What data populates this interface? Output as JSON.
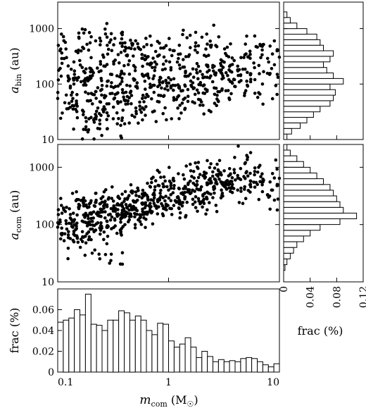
{
  "chart_data": [
    {
      "id": "scatter-abin",
      "type": "scatter",
      "xscale": "log",
      "yscale": "log",
      "xlim": [
        0.1,
        10
      ],
      "ylim": [
        10,
        3000
      ],
      "ylabel": "a",
      "ylabel_sub": "bin",
      "ylabel_unit": " (au)",
      "yticks": [
        10,
        100,
        1000
      ],
      "ytick_labels": [
        "10",
        "100",
        "1000"
      ],
      "points": {
        "x": [
          0.1,
          0.12,
          0.15,
          0.18,
          0.2,
          0.22,
          0.25,
          0.3,
          0.35,
          0.4,
          0.45,
          0.5,
          0.6,
          0.7,
          0.8,
          1.0,
          1.2,
          1.5,
          2.0,
          2.5,
          3.0,
          4.0,
          5.0,
          6.0,
          7.0,
          8.0,
          9.0,
          0.11,
          0.13,
          0.16,
          0.19,
          0.24,
          0.28,
          0.33,
          0.42,
          0.55,
          0.65,
          0.9,
          1.1,
          1.3,
          1.8,
          2.2,
          2.8,
          3.5,
          4.5,
          0.14,
          0.17,
          0.21,
          0.27,
          0.38,
          0.48,
          0.58,
          0.75,
          0.95,
          1.4,
          1.7,
          2.4,
          3.2,
          6.5,
          0.105,
          0.125,
          0.155,
          0.185,
          0.23,
          0.32,
          0.37,
          0.44,
          0.52,
          0.62,
          0.85,
          1.05,
          1.25,
          1.6,
          2.1,
          2.6,
          3.3,
          4.2,
          5.5,
          8.5
        ],
        "y": [
          55,
          300,
          40,
          120,
          25,
          600,
          80,
          150,
          45,
          400,
          70,
          200,
          35,
          500,
          90,
          130,
          250,
          60,
          700,
          110,
          180,
          90,
          350,
          120,
          480,
          250,
          600,
          30,
          85,
          220,
          15,
          48,
          500,
          65,
          95,
          40,
          140,
          60,
          400,
          75,
          160,
          220,
          50,
          120,
          300,
          100,
          28,
          160,
          800,
          22,
          320,
          55,
          175,
          260,
          35,
          85,
          140,
          430,
          70,
          400,
          130,
          700,
          50,
          37,
          230,
          18,
          450,
          105,
          280,
          62,
          180,
          500,
          95,
          330,
          45,
          160,
          210,
          110,
          190
        ]
      }
    },
    {
      "id": "scatter-acom",
      "type": "scatter",
      "xscale": "log",
      "yscale": "log",
      "xlim": [
        0.1,
        10
      ],
      "ylim": [
        10,
        2500
      ],
      "ylabel": "a",
      "ylabel_sub": "com",
      "ylabel_unit": " (au)",
      "yticks": [
        10,
        100,
        1000
      ],
      "ytick_labels": [
        "10",
        "100",
        "1000"
      ],
      "points": {
        "x": [
          0.1,
          0.12,
          0.15,
          0.18,
          0.2,
          0.22,
          0.25,
          0.3,
          0.35,
          0.4,
          0.45,
          0.5,
          0.6,
          0.7,
          0.8,
          1.0,
          1.2,
          1.5,
          2.0,
          2.5,
          3.0,
          4.0,
          5.0,
          6.0,
          7.0,
          8.0,
          9.0,
          0.11,
          0.13,
          0.16,
          0.19,
          0.24,
          0.28,
          0.33,
          0.42,
          0.55,
          0.65,
          0.9,
          1.1,
          1.3,
          1.8,
          2.2,
          2.8,
          3.5,
          4.5,
          0.14,
          0.17,
          0.21,
          0.27,
          0.38,
          0.48,
          0.58,
          0.75,
          0.95,
          1.4,
          1.7,
          2.4,
          3.2,
          6.5,
          0.105,
          0.125,
          0.155,
          0.185,
          0.23,
          0.32,
          0.37,
          0.44,
          0.52,
          0.62,
          0.85,
          1.05,
          1.25,
          1.6,
          2.1,
          2.6,
          3.3,
          4.2,
          5.5,
          8.5
        ],
        "y": [
          90,
          200,
          60,
          150,
          260,
          80,
          180,
          120,
          300,
          140,
          220,
          100,
          350,
          160,
          250,
          400,
          300,
          500,
          250,
          700,
          400,
          600,
          800,
          450,
          550,
          300,
          650,
          70,
          130,
          40,
          110,
          230,
          90,
          170,
          200,
          130,
          280,
          190,
          600,
          350,
          420,
          300,
          900,
          500,
          380,
          50,
          240,
          130,
          30,
          160,
          260,
          150,
          400,
          220,
          280,
          650,
          340,
          460,
          1000,
          120,
          75,
          190,
          95,
          145,
          210,
          110,
          320,
          175,
          240,
          310,
          480,
          230,
          360,
          820,
          430,
          560,
          720,
          1800,
          400
        ]
      }
    },
    {
      "id": "hist-mcom",
      "type": "bar",
      "xscale": "log",
      "xlim": [
        0.1,
        10
      ],
      "ylim": [
        0,
        0.08
      ],
      "ylabel": "frac (%)",
      "xlabel": "m",
      "xlabel_sub": "com",
      "xlabel_unit_pre": " (M",
      "xlabel_unit_sub": "☉",
      "xlabel_unit_post": ")",
      "yticks": [
        0,
        0.02,
        0.04,
        0.06
      ],
      "ytick_labels": [
        "0",
        "0.02",
        "0.04",
        "0.06"
      ],
      "xticks": [
        0.1,
        1,
        10
      ],
      "xtick_labels": [
        "0.1",
        "1",
        "10"
      ],
      "bin_log_width": 0.05,
      "bin_starts_log10": [
        -1.0,
        -0.95,
        -0.9,
        -0.85,
        -0.8,
        -0.75,
        -0.7,
        -0.65,
        -0.6,
        -0.55,
        -0.5,
        -0.45,
        -0.4,
        -0.35,
        -0.3,
        -0.25,
        -0.2,
        -0.15,
        -0.1,
        -0.05,
        0.0,
        0.05,
        0.1,
        0.15,
        0.2,
        0.25,
        0.3,
        0.35,
        0.4,
        0.45,
        0.5,
        0.55,
        0.6,
        0.65,
        0.7,
        0.75,
        0.8,
        0.85,
        0.9,
        0.95
      ],
      "values": [
        0.048,
        0.05,
        0.052,
        0.06,
        0.055,
        0.075,
        0.046,
        0.045,
        0.04,
        0.05,
        0.05,
        0.059,
        0.057,
        0.05,
        0.054,
        0.05,
        0.04,
        0.036,
        0.047,
        0.046,
        0.03,
        0.024,
        0.027,
        0.033,
        0.024,
        0.014,
        0.02,
        0.015,
        0.01,
        0.012,
        0.01,
        0.011,
        0.01,
        0.013,
        0.014,
        0.013,
        0.01,
        0.007,
        0.005,
        0.008
      ]
    },
    {
      "id": "hist-abin",
      "type": "bar",
      "orientation": "horizontal",
      "yscale": "log",
      "ylim": [
        10,
        3000
      ],
      "xlim": [
        0,
        0.12
      ],
      "bin_log_width": 0.1,
      "bin_starts_log10": [
        1.0,
        1.1,
        1.2,
        1.3,
        1.4,
        1.5,
        1.6,
        1.7,
        1.8,
        1.9,
        2.0,
        2.1,
        2.2,
        2.3,
        2.4,
        2.5,
        2.6,
        2.7,
        2.8,
        2.9,
        3.0,
        3.1,
        3.2,
        3.3
      ],
      "values": [
        0.005,
        0.012,
        0.025,
        0.035,
        0.045,
        0.055,
        0.07,
        0.075,
        0.078,
        0.07,
        0.09,
        0.075,
        0.065,
        0.06,
        0.07,
        0.075,
        0.06,
        0.055,
        0.05,
        0.035,
        0.02,
        0.01,
        0.005,
        0.0
      ]
    },
    {
      "id": "hist-acom",
      "type": "bar",
      "orientation": "horizontal",
      "yscale": "log",
      "ylim": [
        10,
        2500
      ],
      "xlim": [
        0,
        0.12
      ],
      "xlabel": "frac (%)",
      "xticks": [
        0,
        0.04,
        0.08,
        0.12
      ],
      "xtick_labels": [
        "0",
        "0.04",
        "0.08",
        "0.12"
      ],
      "bin_log_width": 0.1,
      "bin_starts_log10": [
        1.0,
        1.1,
        1.2,
        1.3,
        1.4,
        1.5,
        1.6,
        1.7,
        1.8,
        1.9,
        2.0,
        2.1,
        2.2,
        2.3,
        2.4,
        2.5,
        2.6,
        2.7,
        2.8,
        2.9,
        3.0,
        3.1,
        3.2,
        3.3
      ],
      "values": [
        0.0,
        0.0,
        0.002,
        0.005,
        0.01,
        0.015,
        0.02,
        0.03,
        0.04,
        0.055,
        0.085,
        0.11,
        0.09,
        0.085,
        0.08,
        0.075,
        0.07,
        0.06,
        0.05,
        0.04,
        0.03,
        0.02,
        0.01,
        0.005
      ]
    }
  ]
}
